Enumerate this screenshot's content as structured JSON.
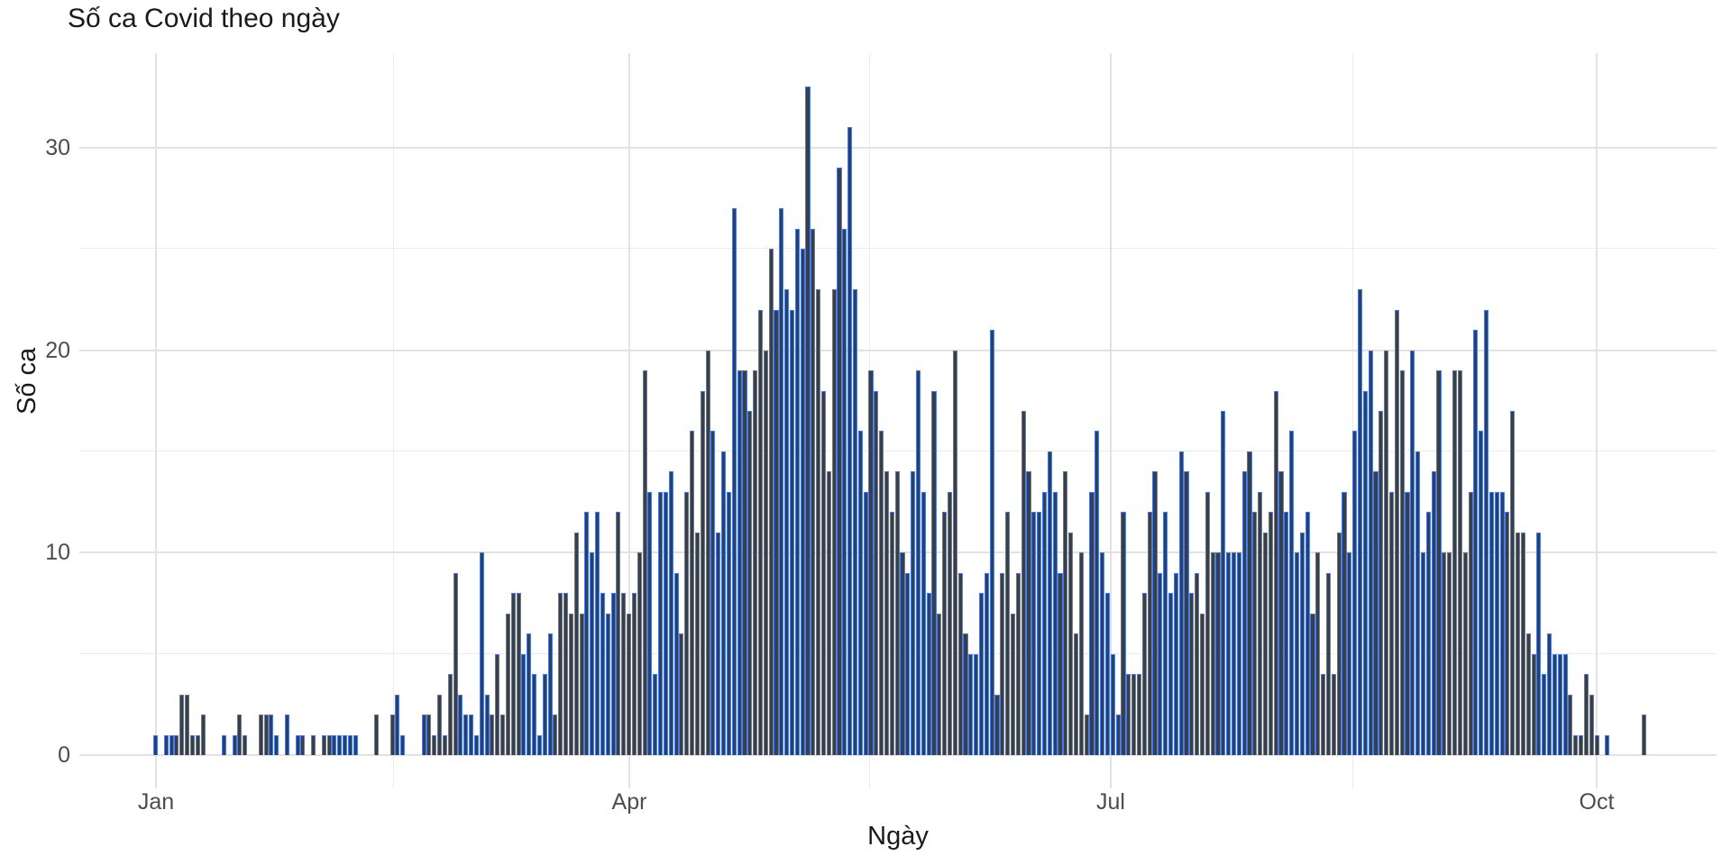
{
  "chart_data": {
    "type": "bar",
    "title": "Số ca Covid theo ngày",
    "xlabel": "Ngày",
    "ylabel": "Số ca",
    "x_tick_labels": [
      "Jan",
      "Apr",
      "Jul",
      "Oct"
    ],
    "y_tick_labels": [
      "0",
      "10",
      "20",
      "30"
    ],
    "ylim": [
      0,
      33
    ],
    "grid": "major and minor, light gray on white",
    "legend": "none",
    "x_unit": "day (daily bars from Jan to early Oct)",
    "values": [
      1,
      0,
      1,
      1,
      1,
      3,
      3,
      1,
      1,
      2,
      0,
      0,
      0,
      1,
      0,
      1,
      2,
      1,
      0,
      0,
      2,
      2,
      2,
      1,
      0,
      2,
      0,
      1,
      1,
      0,
      1,
      0,
      1,
      1,
      1,
      1,
      1,
      1,
      1,
      0,
      0,
      0,
      2,
      0,
      0,
      2,
      3,
      1,
      0,
      0,
      0,
      2,
      2,
      1,
      3,
      1,
      4,
      9,
      3,
      2,
      2,
      1,
      10,
      3,
      2,
      5,
      2,
      7,
      8,
      8,
      5,
      6,
      4,
      1,
      4,
      6,
      2,
      8,
      8,
      7,
      11,
      7,
      12,
      10,
      12,
      8,
      7,
      8,
      12,
      8,
      7,
      8,
      10,
      19,
      13,
      4,
      13,
      13,
      14,
      9,
      6,
      13,
      16,
      11,
      18,
      20,
      16,
      11,
      15,
      13,
      27,
      19,
      19,
      17,
      19,
      22,
      20,
      25,
      22,
      27,
      23,
      22,
      26,
      25,
      33,
      26,
      23,
      18,
      14,
      23,
      29,
      26,
      31,
      23,
      16,
      13,
      19,
      18,
      16,
      14,
      12,
      14,
      10,
      9,
      14,
      19,
      13,
      8,
      18,
      7,
      12,
      13,
      20,
      9,
      6,
      5,
      5,
      8,
      9,
      21,
      3,
      9,
      12,
      7,
      9,
      17,
      14,
      12,
      12,
      13,
      15,
      13,
      9,
      14,
      11,
      6,
      10,
      2,
      13,
      16,
      10,
      8,
      5,
      2,
      12,
      4,
      4,
      4,
      8,
      12,
      14,
      9,
      12,
      8,
      9,
      15,
      14,
      8,
      9,
      7,
      13,
      10,
      10,
      17,
      10,
      10,
      10,
      14,
      15,
      12,
      13,
      11,
      12,
      18,
      14,
      12,
      16,
      10,
      11,
      12,
      7,
      10,
      4,
      9,
      4,
      11,
      13,
      10,
      16,
      23,
      18,
      20,
      14,
      17,
      20,
      13,
      22,
      19,
      13,
      20,
      15,
      10,
      12,
      14,
      19,
      10,
      10,
      19,
      19,
      10,
      13,
      21,
      16,
      22,
      13,
      13,
      13,
      12,
      17,
      11,
      11,
      6,
      5,
      11,
      4,
      6,
      5,
      5,
      5,
      3,
      1,
      1,
      4,
      3,
      1,
      0,
      1,
      0,
      0,
      0,
      0,
      0,
      0,
      2
    ],
    "colors": {
      "bar_fill": "#34404f",
      "bar_stroke": "#4d7de2",
      "grid_major": "#e2e2e2",
      "grid_minor": "#ececec",
      "tick_text": "#4d4d4d",
      "title_text": "#1a1a1a"
    }
  }
}
